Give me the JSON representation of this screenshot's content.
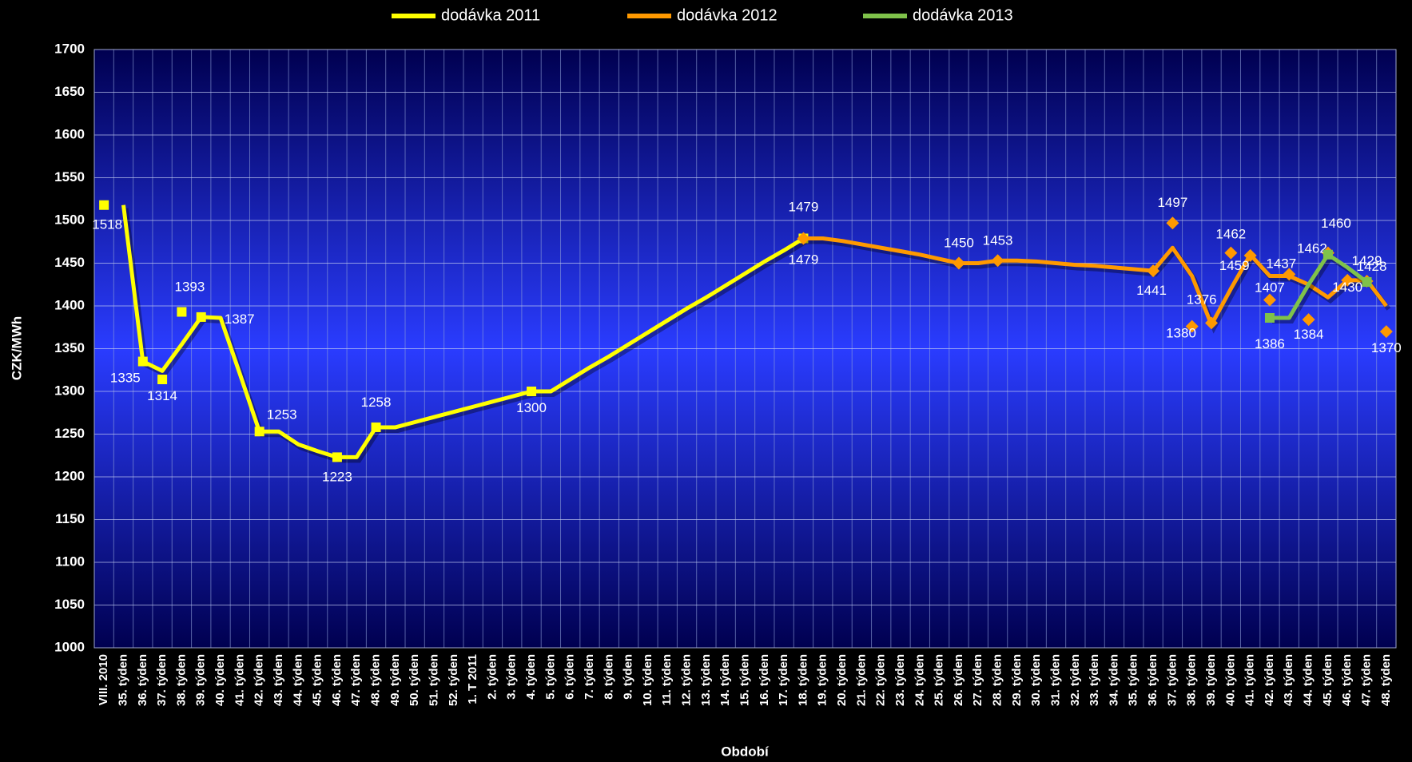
{
  "chart_data": {
    "type": "line",
    "legend": "top",
    "y_label": "CZK/MWh",
    "x_label": "Období",
    "ylim": [
      1000,
      1700
    ],
    "yticks": [
      1000,
      1050,
      1100,
      1150,
      1200,
      1250,
      1300,
      1350,
      1400,
      1450,
      1500,
      1550,
      1600,
      1650,
      1700
    ],
    "grid": true,
    "categories": [
      "VIII. 2010",
      "35. týden",
      "36. týden",
      "37. týden",
      "38. týden",
      "39. týden",
      "40. týden",
      "41. týden",
      "42. týden",
      "43. týden",
      "44. týden",
      "45. týden",
      "46. týden",
      "47. týden",
      "48. týden",
      "49. týden",
      "50. týden",
      "51. týden",
      "52. týden",
      "1. T 2011",
      "2. týden",
      "3. týden",
      "4. týden",
      "5. týden",
      "6. týden",
      "7. týden",
      "8. týden",
      "9. týden",
      "10. týden",
      "11. týden",
      "12. týden",
      "13. týden",
      "14. týden",
      "15. týden",
      "16. týden",
      "17. týden",
      "18. týden",
      "19. týden",
      "20. týden",
      "21. týden",
      "22. týden",
      "23. týden",
      "24. týden",
      "25. týden",
      "26. týden",
      "27. týden",
      "28. týden",
      "29. týden",
      "30. týden",
      "31. týden",
      "32. týden",
      "33. týden",
      "34. týden",
      "35. týden",
      "36. týden",
      "37. týden",
      "38. týden",
      "39. týden",
      "40. týden",
      "41. týden",
      "42. týden",
      "43. týden",
      "44. týden",
      "45. týden",
      "46. týden",
      "47. týden",
      "48. týden"
    ],
    "series": [
      {
        "name": "dodávka 2011",
        "color": "#ffff00",
        "marker": "square",
        "values": [
          null,
          1518,
          1335,
          1324,
          1355,
          1387,
          1386,
          1320,
          1253,
          1253,
          1238,
          1230,
          1223,
          1223,
          1258,
          1258,
          1264,
          1270,
          1276,
          1282,
          1288,
          1294,
          1300,
          1300,
          1314,
          1328,
          1341,
          1355,
          1369,
          1383,
          1397,
          1410,
          1424,
          1438,
          1452,
          1465,
          1479,
          null,
          null,
          null,
          null,
          null,
          null,
          null,
          null,
          null,
          null,
          null,
          null,
          null,
          null,
          null,
          null,
          null,
          null,
          null,
          null,
          null,
          null,
          null,
          null,
          null,
          null,
          null,
          null,
          null,
          null
        ],
        "points": [
          1518,
          null,
          1335,
          1314,
          1393,
          1387,
          null,
          null,
          1253,
          null,
          null,
          null,
          1223,
          null,
          1258,
          null,
          null,
          null,
          null,
          null,
          null,
          null,
          1300,
          null,
          null,
          null,
          null,
          null,
          null,
          null,
          null,
          null,
          null,
          null,
          null,
          null,
          1479,
          null,
          null,
          null,
          null,
          null,
          null,
          null,
          null,
          null,
          null,
          null,
          null,
          null,
          null,
          null,
          null,
          null,
          null,
          null,
          null,
          null,
          null,
          null,
          null,
          null,
          null,
          null,
          null,
          null,
          null
        ]
      },
      {
        "name": "dodávka 2012",
        "color": "#ff9900",
        "marker": "diamond",
        "values": [
          null,
          null,
          null,
          null,
          null,
          null,
          null,
          null,
          null,
          null,
          null,
          null,
          null,
          null,
          null,
          null,
          null,
          null,
          null,
          null,
          null,
          null,
          null,
          null,
          null,
          null,
          null,
          null,
          null,
          null,
          null,
          null,
          null,
          null,
          null,
          null,
          1479,
          1479,
          1476,
          1472,
          1468,
          1464,
          1460,
          1455,
          1450,
          1450,
          1453,
          1453,
          1452,
          1450,
          1448,
          1447,
          1445,
          1443,
          1441,
          1468,
          1435,
          1378,
          1420,
          1460,
          1435,
          1435,
          1425,
          1410,
          1430,
          1430,
          1400
        ],
        "points": [
          null,
          null,
          null,
          null,
          null,
          null,
          null,
          null,
          null,
          null,
          null,
          null,
          null,
          null,
          null,
          null,
          null,
          null,
          null,
          null,
          null,
          null,
          null,
          null,
          null,
          null,
          null,
          null,
          null,
          null,
          null,
          null,
          null,
          null,
          null,
          null,
          1479,
          null,
          null,
          null,
          null,
          null,
          null,
          null,
          1450,
          null,
          1453,
          null,
          null,
          null,
          null,
          null,
          null,
          null,
          1441,
          1497,
          1376,
          1380,
          1462,
          1459,
          1407,
          1437,
          1384,
          1462,
          1430,
          1429,
          1370
        ]
      },
      {
        "name": "dodávka 2013",
        "color": "#7fc24a",
        "marker": "square",
        "values": [
          null,
          null,
          null,
          null,
          null,
          null,
          null,
          null,
          null,
          null,
          null,
          null,
          null,
          null,
          null,
          null,
          null,
          null,
          null,
          null,
          null,
          null,
          null,
          null,
          null,
          null,
          null,
          null,
          null,
          null,
          null,
          null,
          null,
          null,
          null,
          null,
          null,
          null,
          null,
          null,
          null,
          null,
          null,
          null,
          null,
          null,
          null,
          null,
          null,
          null,
          null,
          null,
          null,
          null,
          null,
          null,
          null,
          null,
          null,
          null,
          1386,
          1386,
          1425,
          1460,
          1445,
          1428,
          null
        ],
        "points": [
          null,
          null,
          null,
          null,
          null,
          null,
          null,
          null,
          null,
          null,
          null,
          null,
          null,
          null,
          null,
          null,
          null,
          null,
          null,
          null,
          null,
          null,
          null,
          null,
          null,
          null,
          null,
          null,
          null,
          null,
          null,
          null,
          null,
          null,
          null,
          null,
          null,
          null,
          null,
          null,
          null,
          null,
          null,
          null,
          null,
          null,
          null,
          null,
          null,
          null,
          null,
          null,
          null,
          null,
          null,
          null,
          null,
          null,
          null,
          null,
          1386,
          null,
          null,
          1460,
          null,
          1428,
          null
        ]
      }
    ]
  }
}
